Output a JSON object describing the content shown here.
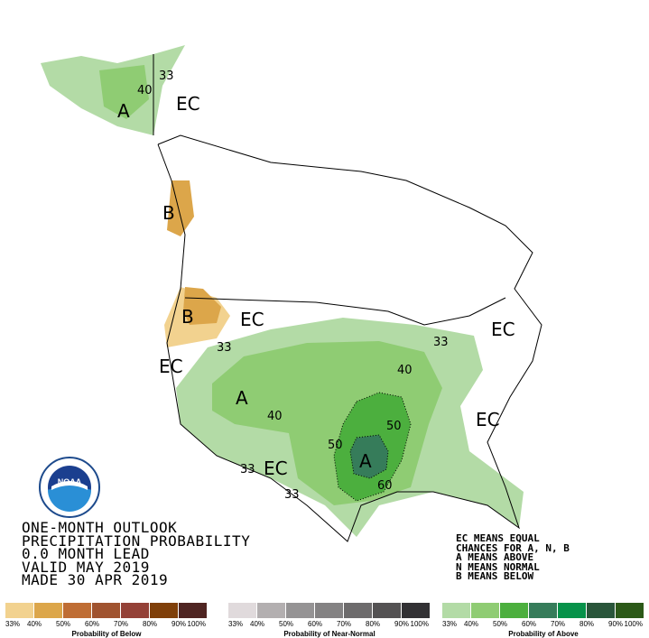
{
  "title_block": [
    "ONE-MONTH OUTLOOK",
    "PRECIPITATION PROBABILITY",
    "0.0 MONTH LEAD",
    "VALID MAY 2019",
    "MADE 30 APR 2019"
  ],
  "key": [
    "EC MEANS EQUAL",
    "CHANCES FOR A, N, B",
    "A MEANS ABOVE",
    "N MEANS NORMAL",
    "B MEANS BELOW"
  ],
  "map_labels": {
    "ec": "EC",
    "a": "A",
    "b": "B",
    "c33": "33",
    "c40": "40",
    "c50": "50",
    "c60": "60"
  },
  "logo": {
    "text": "NOAA",
    "ring_text": "NATIONAL OCEANIC AND ATMOSPHERIC ADMINISTRATION · U.S. DEPARTMENT OF COMMERCE"
  },
  "legends": [
    {
      "title": "Probability of Below",
      "ticks": [
        "33%",
        "40%",
        "50%",
        "60%",
        "70%",
        "80%",
        "90%",
        "100%"
      ],
      "colors": [
        "#f2d28f",
        "#dca64a",
        "#bf6d34",
        "#a0532f",
        "#944137",
        "#7f3f09",
        "#4f2522"
      ]
    },
    {
      "title": "Probability of Near-Normal",
      "ticks": [
        "33%",
        "40%",
        "50%",
        "60%",
        "70%",
        "80%",
        "90%",
        "100%"
      ],
      "colors": [
        "#e0dadc",
        "#b3afb0",
        "#959394",
        "#848283",
        "#6d6b6c",
        "#545253",
        "#323134"
      ]
    },
    {
      "title": "Probability of Above",
      "ticks": [
        "33%",
        "40%",
        "50%",
        "60%",
        "70%",
        "80%",
        "90%",
        "100%"
      ],
      "colors": [
        "#b3dba6",
        "#8fcc73",
        "#4caf3e",
        "#367c5a",
        "#07924a",
        "#29553a",
        "#2c5918"
      ]
    }
  ]
}
